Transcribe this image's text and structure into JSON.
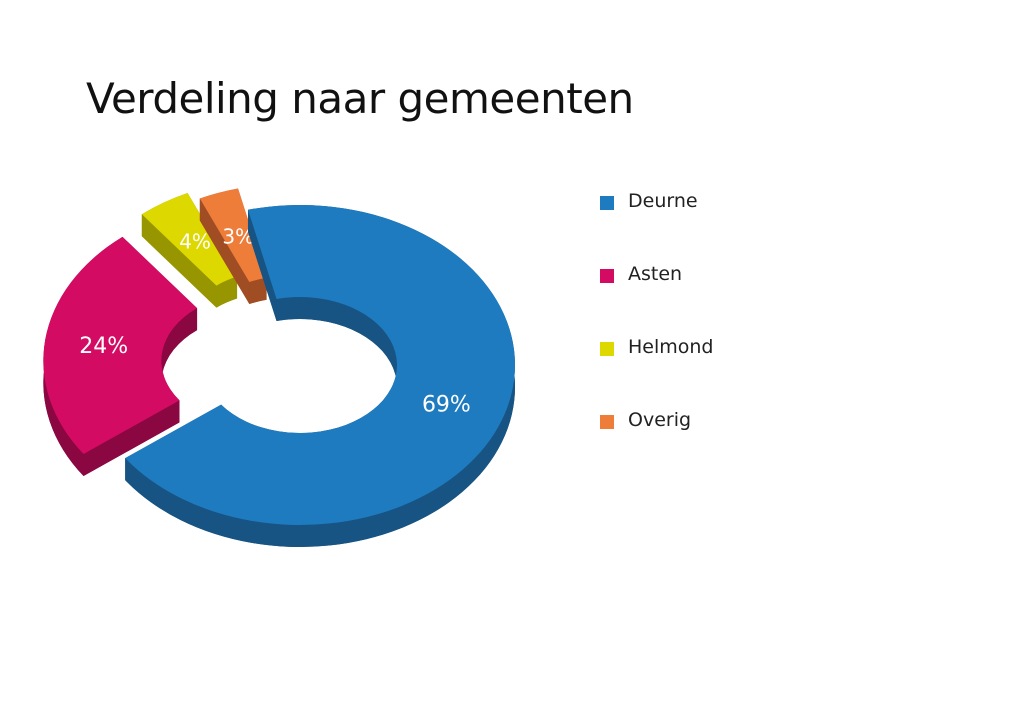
{
  "chart_data": {
    "type": "pie",
    "title": "Verdeling naar gemeenten",
    "categories": [
      "Deurne",
      "Asten",
      "Helmond",
      "Overig"
    ],
    "values": [
      69,
      24,
      4,
      3
    ],
    "labels": [
      "69%",
      "24%",
      "4%",
      "3%"
    ],
    "colors": [
      "#1f7bbf",
      "#d40b63",
      "#dcd800",
      "#ee7d3a"
    ],
    "side_colors": [
      "#175483",
      "#8a0741",
      "#979600",
      "#a04d23"
    ],
    "donut": true,
    "exploded": true,
    "three_d": true,
    "legend_position": "right"
  }
}
